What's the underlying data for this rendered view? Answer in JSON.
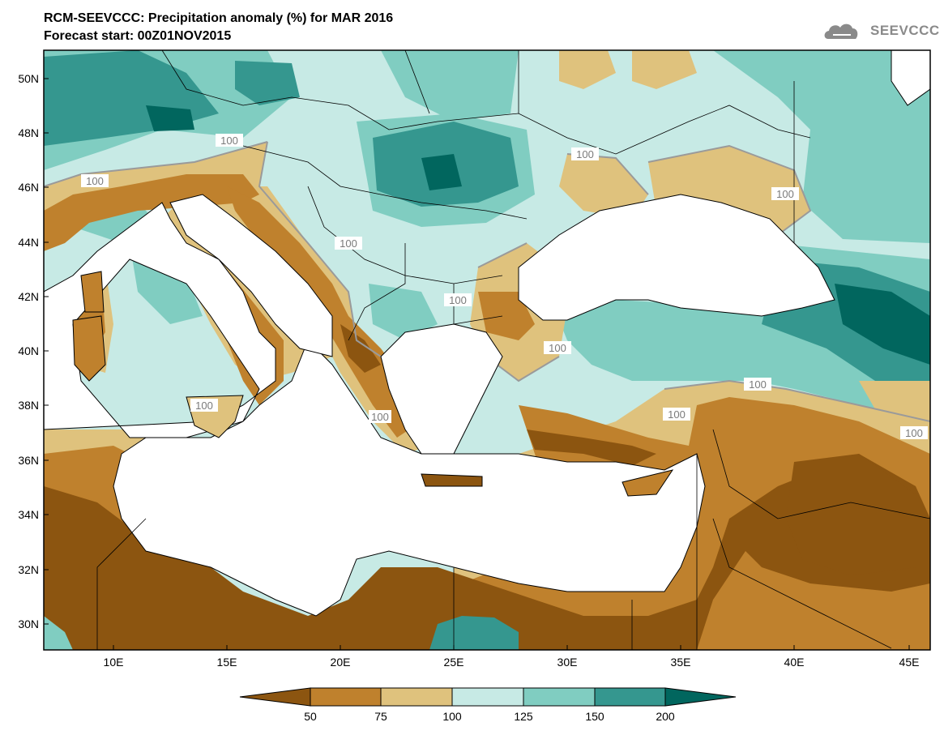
{
  "title_line1": "RCM-SEEVCCC: Precipitation anomaly (%) for MAR 2016",
  "title_line2": "Forecast start: 00Z01NOV2015",
  "logo_text": "SEEVCCC",
  "lat_labels": [
    "50N",
    "48N",
    "46N",
    "44N",
    "42N",
    "40N",
    "38N",
    "36N",
    "34N",
    "32N",
    "30N"
  ],
  "lon_labels": [
    "10E",
    "15E",
    "20E",
    "25E",
    "30E",
    "35E",
    "40E",
    "45E"
  ],
  "contour_labels": [
    "100",
    "100",
    "100",
    "100",
    "100",
    "100",
    "100",
    "100",
    "100",
    "100",
    "100",
    "100"
  ],
  "colorbar": {
    "ticks": [
      "50",
      "75",
      "100",
      "125",
      "150",
      "200"
    ],
    "colors": [
      "#8c5510",
      "#bf812d",
      "#dfc27d",
      "#c7eae5",
      "#80cdc1",
      "#35978f",
      "#01665e"
    ]
  },
  "colors": {
    "land_base": "#c7eae5",
    "sea": "#ffffff",
    "contour_line": "#9a9a9a"
  },
  "icons": [
    "cloud-logo-icon"
  ]
}
